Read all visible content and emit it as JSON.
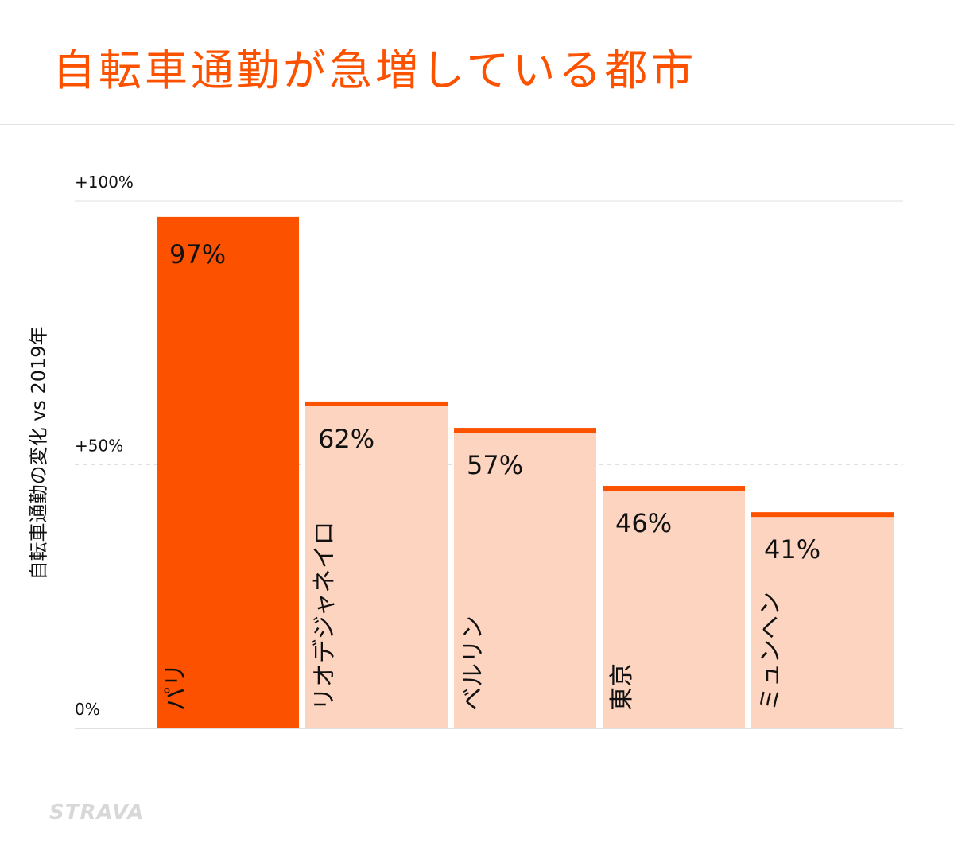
{
  "title": "自転車通勤が急増している都市",
  "colors": {
    "accent": "#fc5200",
    "bar_light": "#fdd4c0",
    "text": "#111111",
    "grid": "#e0e0e0"
  },
  "brand": "STRAVA",
  "chart_data": {
    "type": "bar",
    "title": "自転車通勤が急増している都市",
    "ylabel": "自転車通勤の変化 vs 2019年",
    "xlabel": "",
    "ylim": [
      0,
      100
    ],
    "yticks": [
      {
        "value": 0,
        "label": "0%"
      },
      {
        "value": 50,
        "label": "+50%"
      },
      {
        "value": 100,
        "label": "+100%"
      }
    ],
    "grid": true,
    "categories": [
      "パリ",
      "リオデジャネイロ",
      "ベルリン",
      "東京",
      "ミュンヘン"
    ],
    "values": [
      97,
      62,
      57,
      46,
      41
    ],
    "value_labels": [
      "97%",
      "62%",
      "57%",
      "46%",
      "41%"
    ],
    "highlight_index": 0
  }
}
